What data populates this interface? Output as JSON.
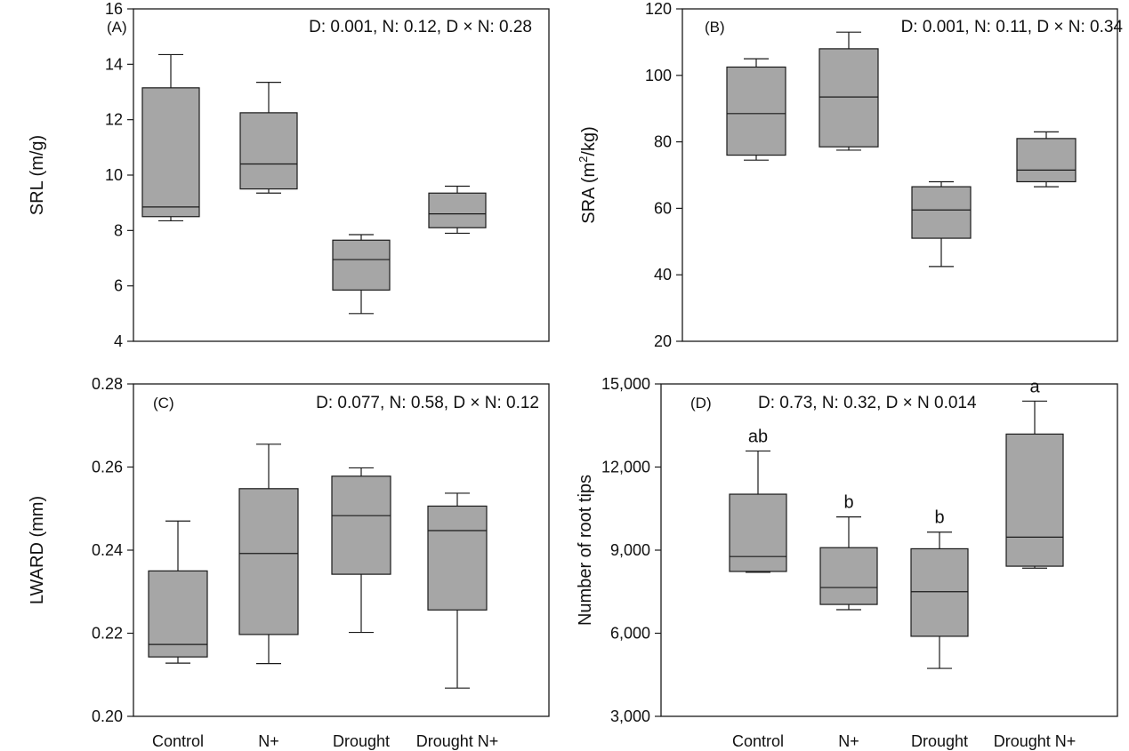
{
  "chart_data": [
    {
      "type": "box",
      "panel_label": "(A)",
      "stats_text": "D: 0.001, N: 0.12, D × N: 0.28",
      "ylabel": "SRL (m/g)",
      "ylabel_sup": "",
      "ylabel_suffix": "",
      "ylim": [
        4,
        16
      ],
      "yticks": [
        4,
        6,
        8,
        10,
        12,
        14,
        16
      ],
      "ytick_labels": [
        "4",
        "6",
        "8",
        "10",
        "12",
        "14",
        "16"
      ],
      "categories": [
        "Control",
        "N+",
        "Drought",
        "Drought N+"
      ],
      "boxes": [
        {
          "min": 8.35,
          "q1": 8.5,
          "median": 8.85,
          "q3": 13.15,
          "max": 14.35
        },
        {
          "min": 9.35,
          "q1": 9.5,
          "median": 10.4,
          "q3": 12.25,
          "max": 13.35
        },
        {
          "min": 5.0,
          "q1": 5.85,
          "median": 6.95,
          "q3": 7.65,
          "max": 7.85
        },
        {
          "min": 7.9,
          "q1": 8.1,
          "median": 8.6,
          "q3": 9.35,
          "max": 9.6
        }
      ],
      "significance": []
    },
    {
      "type": "box",
      "panel_label": "(B)",
      "stats_text": "D: 0.001, N: 0.11, D × N: 0.34",
      "ylabel": "SRA (m",
      "ylabel_sup": "2",
      "ylabel_suffix": "/kg)",
      "ylim": [
        20,
        120
      ],
      "yticks": [
        20,
        40,
        60,
        80,
        100,
        120
      ],
      "ytick_labels": [
        "20",
        "40",
        "60",
        "80",
        "100",
        "120"
      ],
      "categories": [
        "Control",
        "N+",
        "Drought",
        "Drought N+"
      ],
      "boxes": [
        {
          "min": 74.5,
          "q1": 76.0,
          "median": 88.5,
          "q3": 102.5,
          "max": 105.0
        },
        {
          "min": 77.5,
          "q1": 78.5,
          "median": 93.5,
          "q3": 108.0,
          "max": 113.0
        },
        {
          "min": 42.5,
          "q1": 51.0,
          "median": 59.5,
          "q3": 66.5,
          "max": 68.0
        },
        {
          "min": 66.5,
          "q1": 68.0,
          "median": 71.5,
          "q3": 81.0,
          "max": 83.0
        }
      ],
      "significance": []
    },
    {
      "type": "box",
      "panel_label": "(C)",
      "stats_text": "D: 0.077, N: 0.58, D × N: 0.12",
      "ylabel": "LWARD (mm)",
      "ylabel_sup": "",
      "ylabel_suffix": "",
      "ylim": [
        0.2,
        0.28
      ],
      "yticks": [
        0.2,
        0.22,
        0.24,
        0.26,
        0.28
      ],
      "ytick_labels": [
        "0.20",
        "0.22",
        "0.24",
        "0.26",
        "0.28"
      ],
      "categories": [
        "Control",
        "N+",
        "Drought",
        "Drought N+"
      ],
      "category_labels": [
        "Control",
        "N+",
        "Drought",
        "Drought N+"
      ],
      "boxes": [
        {
          "min": 0.2128,
          "q1": 0.2143,
          "median": 0.2173,
          "q3": 0.235,
          "max": 0.247
        },
        {
          "min": 0.2127,
          "q1": 0.2197,
          "median": 0.2392,
          "q3": 0.2548,
          "max": 0.2655
        },
        {
          "min": 0.2202,
          "q1": 0.2342,
          "median": 0.2483,
          "q3": 0.2578,
          "max": 0.2598
        },
        {
          "min": 0.2068,
          "q1": 0.2256,
          "median": 0.2447,
          "q3": 0.2506,
          "max": 0.2537
        }
      ],
      "significance": []
    },
    {
      "type": "box",
      "panel_label": "(D)",
      "stats_text": "D: 0.73, N: 0.32, D × N 0.014",
      "ylabel": "Number of root tips",
      "ylabel_sup": "",
      "ylabel_suffix": "",
      "ylim": [
        3000,
        15000
      ],
      "yticks": [
        3000,
        6000,
        9000,
        12000,
        15000
      ],
      "ytick_labels": [
        "3,000",
        "6,000",
        "9,000",
        "12,000",
        "15,000"
      ],
      "categories": [
        "Control",
        "N+",
        "Drought",
        "Drought N+"
      ],
      "category_labels": [
        "Control",
        "N+",
        "Drought",
        "Drought N+"
      ],
      "boxes": [
        {
          "min": 8200,
          "q1": 8230,
          "median": 8770,
          "q3": 11020,
          "max": 12580
        },
        {
          "min": 6850,
          "q1": 7040,
          "median": 7650,
          "q3": 9090,
          "max": 10200
        },
        {
          "min": 4730,
          "q1": 5890,
          "median": 7500,
          "q3": 9050,
          "max": 9650
        },
        {
          "min": 8350,
          "q1": 8420,
          "median": 9470,
          "q3": 13190,
          "max": 14380
        }
      ],
      "significance": [
        "ab",
        "b",
        "b",
        "a"
      ]
    }
  ],
  "colors": {
    "box_fill": "#a6a6a6",
    "stroke": "#1a1a1a"
  }
}
